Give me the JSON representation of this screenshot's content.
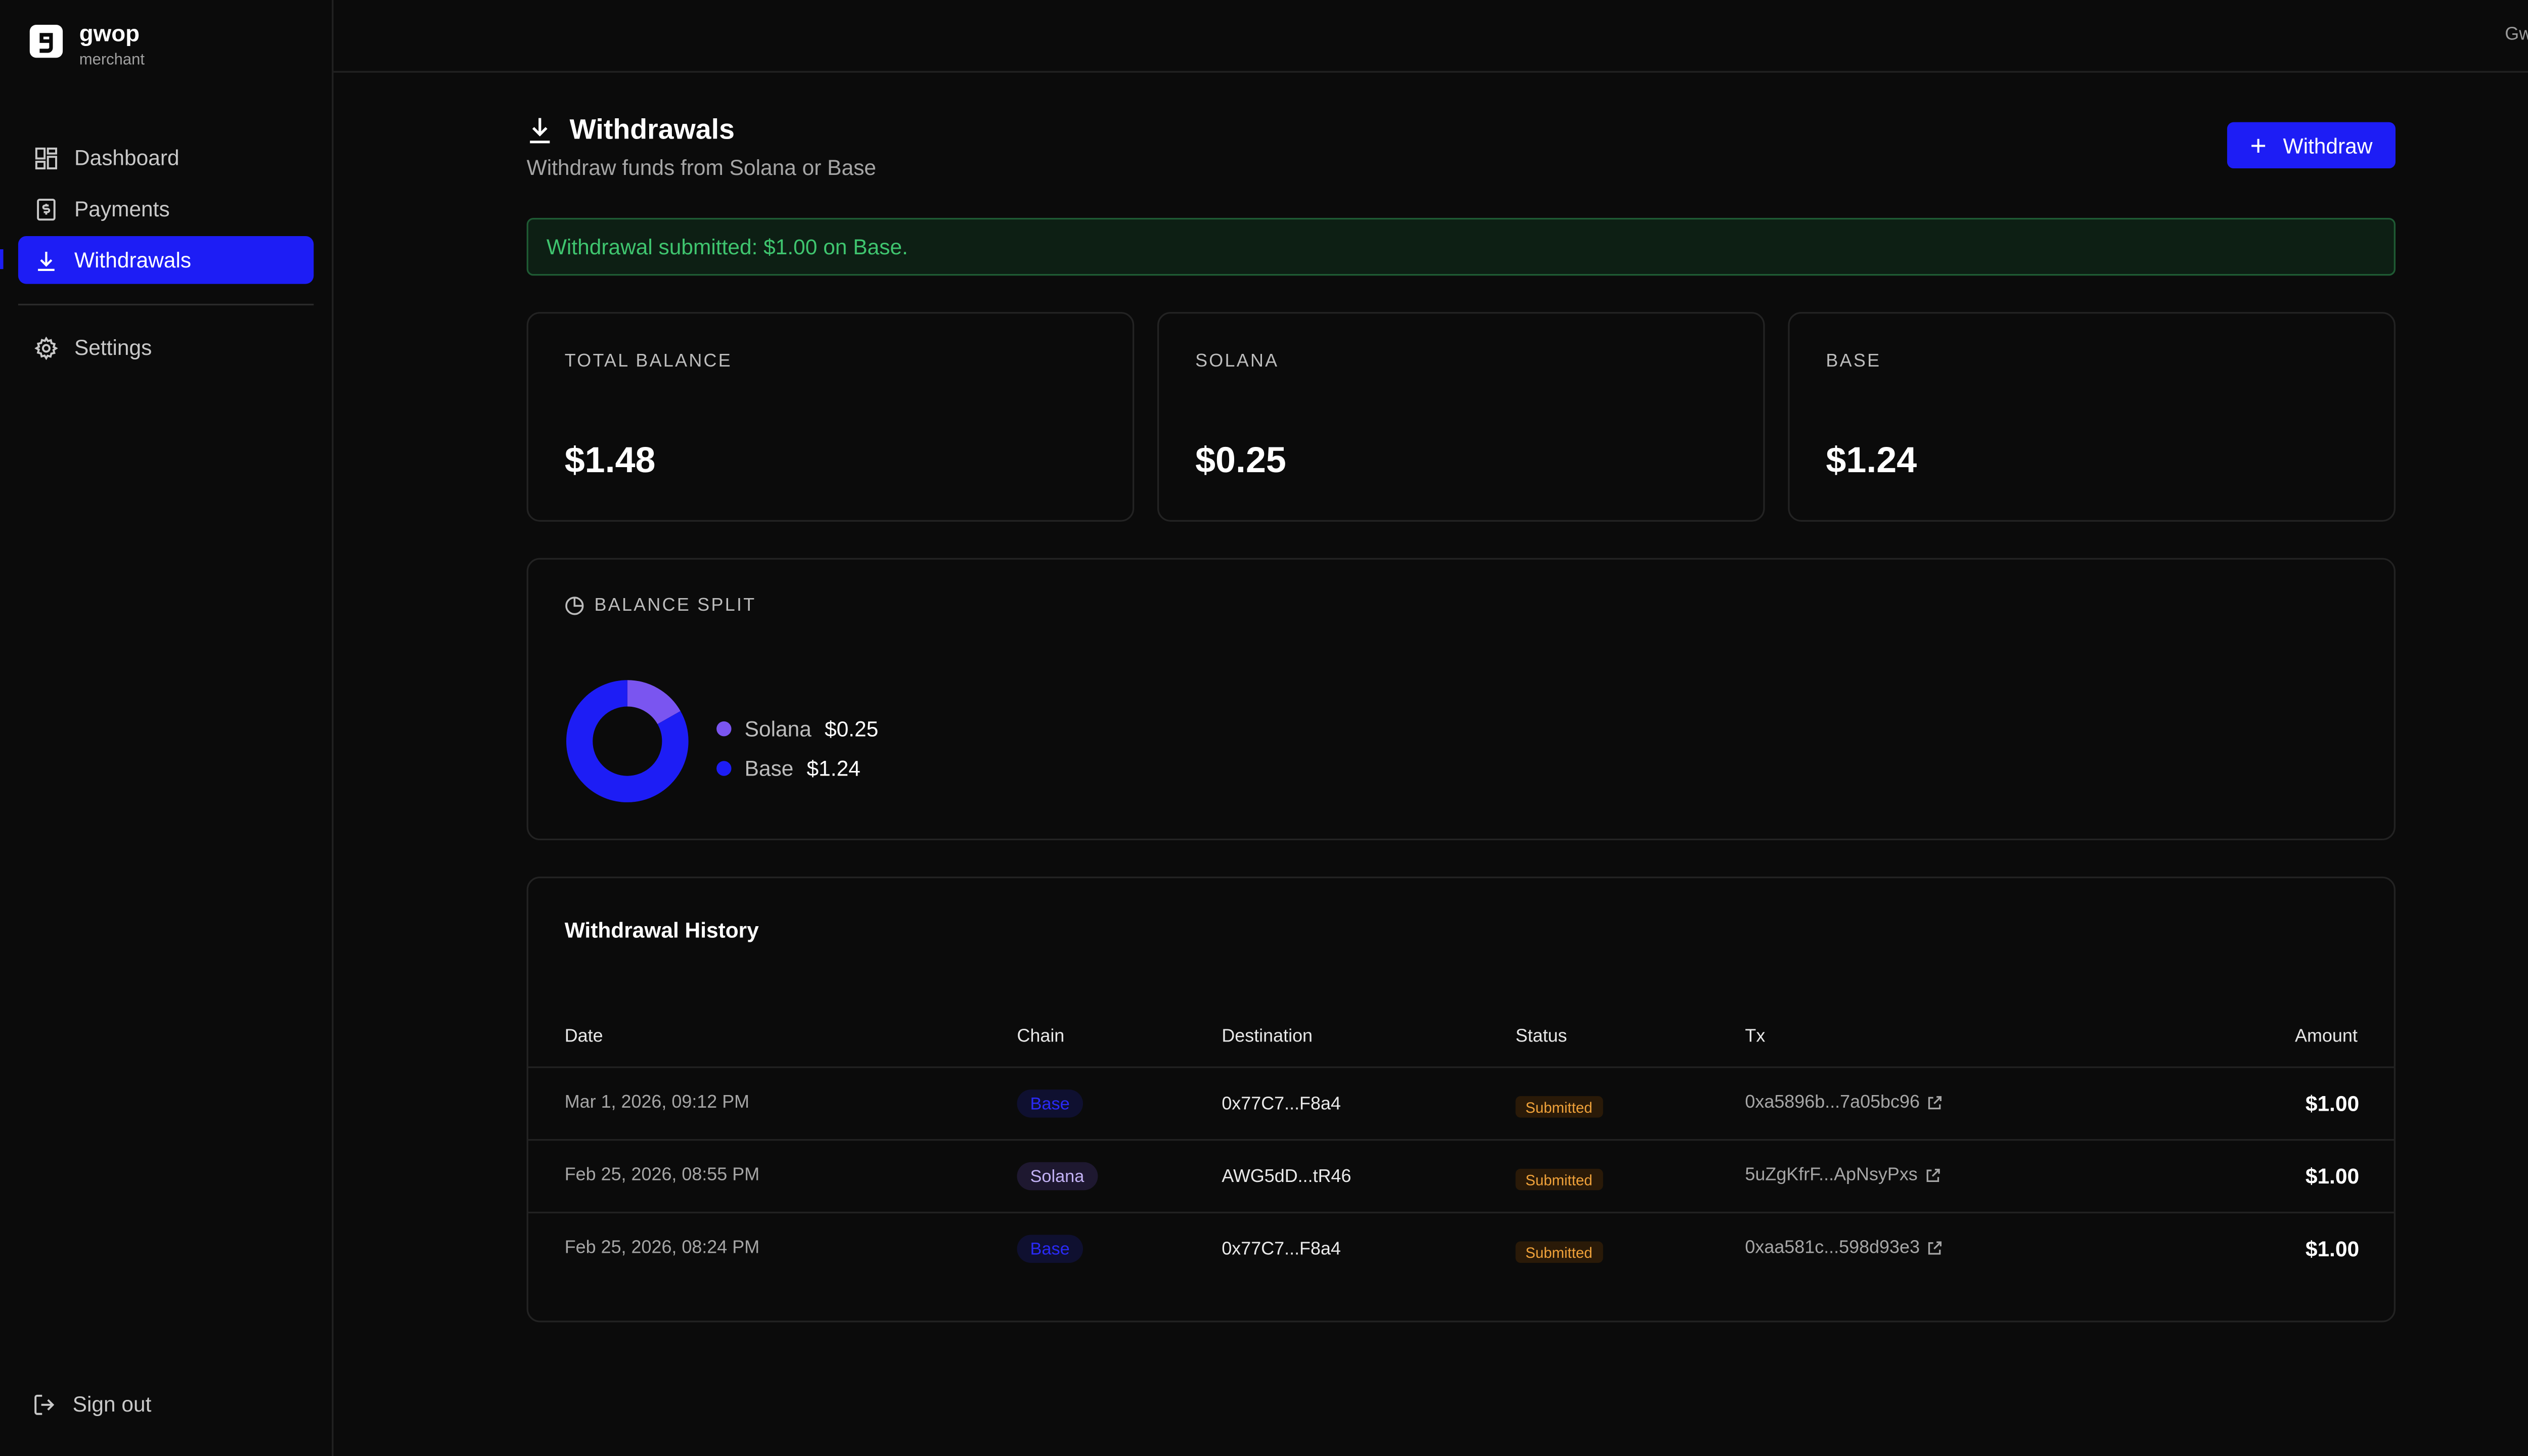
{
  "brand": {
    "name": "gwop",
    "subtitle": "merchant"
  },
  "nav": {
    "items": [
      {
        "label": "Dashboard",
        "icon": "dashboard-icon"
      },
      {
        "label": "Payments",
        "icon": "payments-icon"
      },
      {
        "label": "Withdrawals",
        "icon": "download-icon",
        "active": true
      },
      {
        "label": "Settings",
        "icon": "gear-icon"
      }
    ],
    "signout": "Sign out"
  },
  "header": {
    "user": "Gwop"
  },
  "page": {
    "title": "Withdrawals",
    "subtitle": "Withdraw funds from Solana or Base",
    "withdraw_label": "Withdraw"
  },
  "banner": {
    "text": "Withdrawal submitted: $1.00 on Base."
  },
  "stats": [
    {
      "label": "TOTAL BALANCE",
      "value": "$1.48"
    },
    {
      "label": "SOLANA",
      "value": "$0.25"
    },
    {
      "label": "BASE",
      "value": "$1.24"
    }
  ],
  "split": {
    "title": "BALANCE SPLIT",
    "items": [
      {
        "name": "Solana",
        "value": "$0.25",
        "amount": 0.25,
        "color": "#7a55f0"
      },
      {
        "name": "Base",
        "value": "$1.24",
        "amount": 1.24,
        "color": "#1d1df5"
      }
    ]
  },
  "history": {
    "title": "Withdrawal History",
    "columns": [
      "Date",
      "Chain",
      "Destination",
      "Status",
      "Tx",
      "Amount"
    ],
    "rows": [
      {
        "date": "Mar 1, 2026, 09:12 PM",
        "chain": "Base",
        "destination": "0x77C7...F8a4",
        "status": "Submitted",
        "tx": "0xa5896b...7a05bc96",
        "amount": "$1.00"
      },
      {
        "date": "Feb 25, 2026, 08:55 PM",
        "chain": "Solana",
        "destination": "AWG5dD...tR46",
        "status": "Submitted",
        "tx": "5uZgKfrF...ApNsyPxs",
        "amount": "$1.00"
      },
      {
        "date": "Feb 25, 2026, 08:24 PM",
        "chain": "Base",
        "destination": "0x77C7...F8a4",
        "status": "Submitted",
        "tx": "0xaa581c...598d93e3",
        "amount": "$1.00"
      }
    ]
  }
}
